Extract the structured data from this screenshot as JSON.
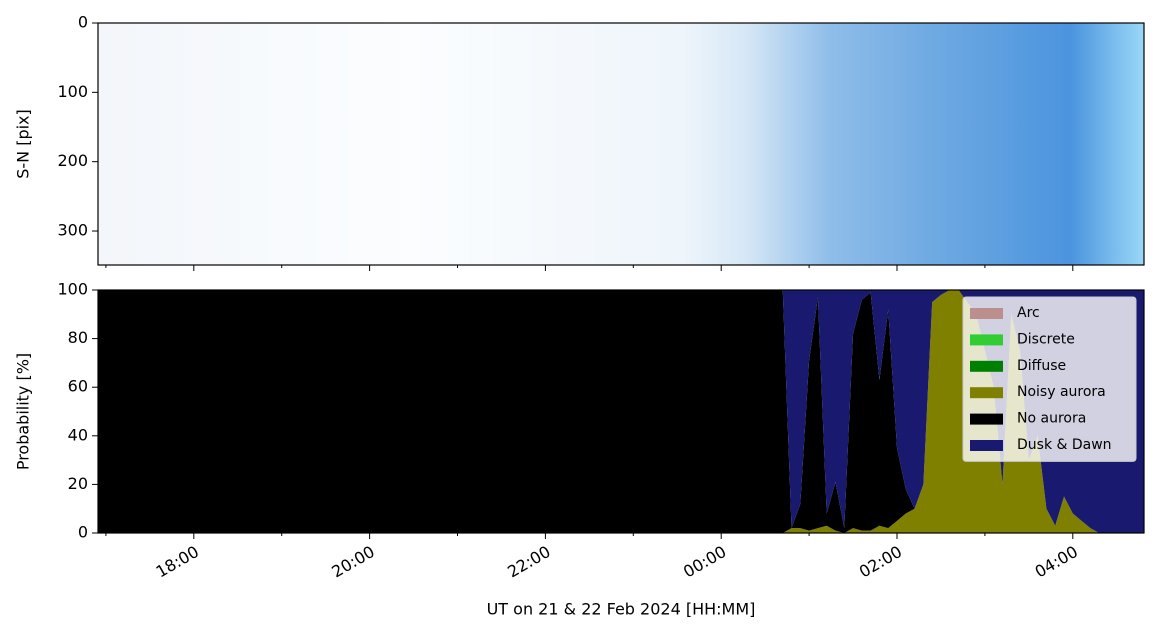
{
  "chart_data": [
    {
      "type": "image",
      "ylabel": "S-N [pix]",
      "ylim": [
        0,
        349
      ],
      "yticks": [
        0,
        100,
        200,
        300
      ],
      "inverted": true
    },
    {
      "type": "stacked_area",
      "ylabel": "Probability [%]",
      "xlabel": "UT on 21 & 22 Feb 2024 [HH:MM]",
      "xlim": [
        16.91,
        28.81
      ],
      "xticks": [
        {
          "value": 18,
          "label": "18:00"
        },
        {
          "value": 20,
          "label": "20:00"
        },
        {
          "value": 22,
          "label": "22:00"
        },
        {
          "value": 24,
          "label": "00:00"
        },
        {
          "value": 26,
          "label": "02:00"
        },
        {
          "value": 28,
          "label": "04:00"
        }
      ],
      "xminorticks": [
        17,
        19,
        21,
        23,
        25,
        27
      ],
      "ylim": [
        0,
        100
      ],
      "yticks": [
        0,
        20,
        40,
        60,
        80,
        100
      ],
      "legend": "upper right",
      "x": [
        16.91,
        24.6,
        24.7,
        24.8,
        24.9,
        25.0,
        25.1,
        25.2,
        25.3,
        25.4,
        25.5,
        25.6,
        25.7,
        25.8,
        25.9,
        26.0,
        26.1,
        26.2,
        26.3,
        26.4,
        26.5,
        26.6,
        26.7,
        26.8,
        26.9,
        27.0,
        27.1,
        27.2,
        27.3,
        27.4,
        27.5,
        27.6,
        27.7,
        27.8,
        27.9,
        28.0,
        28.1,
        28.2,
        28.3,
        28.81
      ],
      "series": [
        {
          "name": "Arc",
          "color": "#bc8f8f",
          "values": [
            0,
            0,
            0,
            0,
            0,
            0,
            0,
            0,
            0,
            0,
            0,
            0,
            0,
            0,
            0,
            0,
            0,
            0,
            0,
            0,
            0,
            0,
            0,
            0,
            0,
            0,
            0,
            0,
            0,
            0,
            0,
            0,
            0,
            0,
            0,
            0,
            0,
            0,
            0,
            0
          ]
        },
        {
          "name": "Discrete",
          "color": "#32cd32",
          "values": [
            0,
            0,
            0,
            0,
            0,
            0,
            0,
            0,
            0,
            0,
            0,
            0,
            0,
            0,
            0,
            0,
            0,
            0,
            0,
            0,
            0,
            0,
            0,
            0,
            0,
            0,
            0,
            0,
            0,
            0,
            0,
            0,
            0,
            0,
            0,
            0,
            0,
            0,
            0,
            0
          ]
        },
        {
          "name": "Diffuse",
          "color": "#008000",
          "values": [
            0,
            0,
            0,
            0,
            0,
            0,
            0,
            0,
            0,
            0,
            0,
            0,
            0,
            0,
            0,
            0,
            0,
            0,
            0,
            0,
            0,
            0,
            0,
            0,
            0,
            0,
            0,
            0,
            0,
            0,
            0,
            0,
            0,
            0,
            0,
            0,
            0,
            0,
            0,
            0
          ]
        },
        {
          "name": "Noisy aurora",
          "color": "#808000",
          "values": [
            0,
            0,
            0,
            2,
            2,
            1,
            2,
            3,
            1,
            0,
            2,
            1,
            1,
            3,
            2,
            5,
            8,
            10,
            20,
            95,
            98,
            100,
            100,
            95,
            90,
            75,
            60,
            20,
            90,
            75,
            30,
            40,
            10,
            3,
            15,
            8,
            5,
            2,
            0,
            0
          ]
        },
        {
          "name": "No aurora",
          "color": "#000000",
          "values": [
            100,
            100,
            100,
            0,
            10,
            70,
            95,
            5,
            20,
            2,
            80,
            95,
            98,
            60,
            90,
            30,
            10,
            0,
            0,
            0,
            0,
            0,
            0,
            0,
            0,
            0,
            0,
            0,
            0,
            0,
            0,
            0,
            0,
            0,
            0,
            0,
            0,
            0,
            0,
            0
          ]
        },
        {
          "name": "Dusk & Dawn",
          "color": "#191970",
          "values": [
            0,
            0,
            0,
            98,
            88,
            29,
            3,
            92,
            79,
            98,
            18,
            4,
            1,
            37,
            8,
            65,
            82,
            90,
            80,
            5,
            2,
            0,
            0,
            5,
            10,
            25,
            40,
            80,
            10,
            25,
            70,
            60,
            90,
            97,
            85,
            92,
            95,
            98,
            100,
            100
          ]
        }
      ]
    }
  ]
}
